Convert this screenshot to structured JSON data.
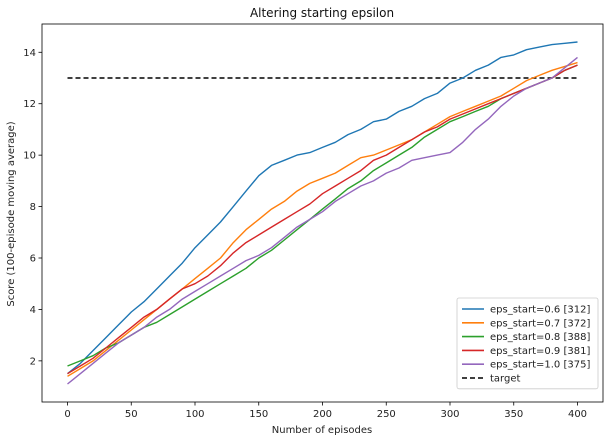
{
  "chart_data": {
    "type": "line",
    "title": "Altering starting epsilon",
    "xlabel": "Number of episodes",
    "ylabel": "Score (100-episode moving average)",
    "xlim": [
      -20,
      420
    ],
    "ylim": [
      0.4,
      15.1
    ],
    "xticks": [
      0,
      50,
      100,
      150,
      200,
      250,
      300,
      350,
      400
    ],
    "yticks": [
      2,
      4,
      6,
      8,
      10,
      12,
      14
    ],
    "grid": false,
    "legend_position": "lower-right",
    "series": [
      {
        "name": "eps_start=0.6 [312]",
        "color": "#1f77b4",
        "points": [
          [
            0,
            1.5
          ],
          [
            10,
            1.9
          ],
          [
            20,
            2.4
          ],
          [
            30,
            2.9
          ],
          [
            40,
            3.4
          ],
          [
            50,
            3.9
          ],
          [
            60,
            4.3
          ],
          [
            70,
            4.8
          ],
          [
            80,
            5.3
          ],
          [
            90,
            5.8
          ],
          [
            100,
            6.4
          ],
          [
            110,
            6.9
          ],
          [
            120,
            7.4
          ],
          [
            130,
            8.0
          ],
          [
            140,
            8.6
          ],
          [
            150,
            9.2
          ],
          [
            160,
            9.6
          ],
          [
            170,
            9.8
          ],
          [
            180,
            10.0
          ],
          [
            190,
            10.1
          ],
          [
            200,
            10.3
          ],
          [
            210,
            10.5
          ],
          [
            220,
            10.8
          ],
          [
            230,
            11.0
          ],
          [
            240,
            11.3
          ],
          [
            250,
            11.4
          ],
          [
            260,
            11.7
          ],
          [
            270,
            11.9
          ],
          [
            280,
            12.2
          ],
          [
            290,
            12.4
          ],
          [
            300,
            12.8
          ],
          [
            310,
            13.0
          ],
          [
            320,
            13.3
          ],
          [
            330,
            13.5
          ],
          [
            340,
            13.8
          ],
          [
            350,
            13.9
          ],
          [
            360,
            14.1
          ],
          [
            370,
            14.2
          ],
          [
            380,
            14.3
          ],
          [
            390,
            14.35
          ],
          [
            400,
            14.4
          ]
        ]
      },
      {
        "name": "eps_start=0.7 [372]",
        "color": "#ff7f0e",
        "points": [
          [
            0,
            1.4
          ],
          [
            10,
            1.7
          ],
          [
            20,
            2.0
          ],
          [
            30,
            2.4
          ],
          [
            40,
            2.8
          ],
          [
            50,
            3.2
          ],
          [
            60,
            3.6
          ],
          [
            70,
            4.0
          ],
          [
            80,
            4.4
          ],
          [
            90,
            4.8
          ],
          [
            100,
            5.2
          ],
          [
            110,
            5.6
          ],
          [
            120,
            6.0
          ],
          [
            130,
            6.6
          ],
          [
            140,
            7.1
          ],
          [
            150,
            7.5
          ],
          [
            160,
            7.9
          ],
          [
            170,
            8.2
          ],
          [
            180,
            8.6
          ],
          [
            190,
            8.9
          ],
          [
            200,
            9.1
          ],
          [
            210,
            9.3
          ],
          [
            220,
            9.6
          ],
          [
            230,
            9.9
          ],
          [
            240,
            10.0
          ],
          [
            250,
            10.2
          ],
          [
            260,
            10.4
          ],
          [
            270,
            10.6
          ],
          [
            280,
            10.9
          ],
          [
            290,
            11.2
          ],
          [
            300,
            11.5
          ],
          [
            310,
            11.7
          ],
          [
            320,
            11.9
          ],
          [
            330,
            12.1
          ],
          [
            340,
            12.3
          ],
          [
            350,
            12.6
          ],
          [
            360,
            12.9
          ],
          [
            370,
            13.1
          ],
          [
            380,
            13.3
          ],
          [
            390,
            13.45
          ],
          [
            400,
            13.6
          ]
        ]
      },
      {
        "name": "eps_start=0.8 [388]",
        "color": "#2ca02c",
        "points": [
          [
            0,
            1.8
          ],
          [
            10,
            2.0
          ],
          [
            20,
            2.2
          ],
          [
            30,
            2.5
          ],
          [
            40,
            2.7
          ],
          [
            50,
            3.0
          ],
          [
            60,
            3.3
          ],
          [
            70,
            3.5
          ],
          [
            80,
            3.8
          ],
          [
            90,
            4.1
          ],
          [
            100,
            4.4
          ],
          [
            110,
            4.7
          ],
          [
            120,
            5.0
          ],
          [
            130,
            5.3
          ],
          [
            140,
            5.6
          ],
          [
            150,
            6.0
          ],
          [
            160,
            6.3
          ],
          [
            170,
            6.7
          ],
          [
            180,
            7.1
          ],
          [
            190,
            7.5
          ],
          [
            200,
            7.9
          ],
          [
            210,
            8.3
          ],
          [
            220,
            8.7
          ],
          [
            230,
            9.0
          ],
          [
            240,
            9.4
          ],
          [
            250,
            9.7
          ],
          [
            260,
            10.0
          ],
          [
            270,
            10.3
          ],
          [
            280,
            10.7
          ],
          [
            290,
            11.0
          ],
          [
            300,
            11.3
          ],
          [
            310,
            11.5
          ],
          [
            320,
            11.7
          ],
          [
            330,
            11.9
          ],
          [
            340,
            12.2
          ],
          [
            350,
            12.4
          ],
          [
            360,
            12.6
          ],
          [
            370,
            12.8
          ],
          [
            380,
            13.0
          ],
          [
            390,
            13.3
          ],
          [
            400,
            13.5
          ]
        ]
      },
      {
        "name": "eps_start=0.9 [381]",
        "color": "#d62728",
        "points": [
          [
            0,
            1.5
          ],
          [
            10,
            1.8
          ],
          [
            20,
            2.1
          ],
          [
            30,
            2.5
          ],
          [
            40,
            2.9
          ],
          [
            50,
            3.3
          ],
          [
            60,
            3.7
          ],
          [
            70,
            4.0
          ],
          [
            80,
            4.4
          ],
          [
            90,
            4.8
          ],
          [
            100,
            5.0
          ],
          [
            110,
            5.3
          ],
          [
            120,
            5.7
          ],
          [
            130,
            6.2
          ],
          [
            140,
            6.6
          ],
          [
            150,
            6.9
          ],
          [
            160,
            7.2
          ],
          [
            170,
            7.5
          ],
          [
            180,
            7.8
          ],
          [
            190,
            8.1
          ],
          [
            200,
            8.5
          ],
          [
            210,
            8.8
          ],
          [
            220,
            9.1
          ],
          [
            230,
            9.4
          ],
          [
            240,
            9.8
          ],
          [
            250,
            10.0
          ],
          [
            260,
            10.3
          ],
          [
            270,
            10.6
          ],
          [
            280,
            10.9
          ],
          [
            290,
            11.1
          ],
          [
            300,
            11.4
          ],
          [
            310,
            11.6
          ],
          [
            320,
            11.8
          ],
          [
            330,
            12.0
          ],
          [
            340,
            12.2
          ],
          [
            350,
            12.4
          ],
          [
            360,
            12.6
          ],
          [
            370,
            12.8
          ],
          [
            380,
            13.0
          ],
          [
            390,
            13.3
          ],
          [
            400,
            13.5
          ]
        ]
      },
      {
        "name": "eps_start=1.0 [375]",
        "color": "#9467bd",
        "points": [
          [
            0,
            1.1
          ],
          [
            10,
            1.5
          ],
          [
            20,
            1.9
          ],
          [
            30,
            2.3
          ],
          [
            40,
            2.7
          ],
          [
            50,
            3.0
          ],
          [
            60,
            3.3
          ],
          [
            70,
            3.7
          ],
          [
            80,
            4.0
          ],
          [
            90,
            4.4
          ],
          [
            100,
            4.7
          ],
          [
            110,
            5.0
          ],
          [
            120,
            5.3
          ],
          [
            130,
            5.6
          ],
          [
            140,
            5.9
          ],
          [
            150,
            6.1
          ],
          [
            160,
            6.4
          ],
          [
            170,
            6.8
          ],
          [
            180,
            7.2
          ],
          [
            190,
            7.5
          ],
          [
            200,
            7.8
          ],
          [
            210,
            8.2
          ],
          [
            220,
            8.5
          ],
          [
            230,
            8.8
          ],
          [
            240,
            9.0
          ],
          [
            250,
            9.3
          ],
          [
            260,
            9.5
          ],
          [
            270,
            9.8
          ],
          [
            280,
            9.9
          ],
          [
            290,
            10.0
          ],
          [
            300,
            10.1
          ],
          [
            310,
            10.5
          ],
          [
            320,
            11.0
          ],
          [
            330,
            11.4
          ],
          [
            340,
            11.9
          ],
          [
            350,
            12.3
          ],
          [
            360,
            12.6
          ],
          [
            370,
            12.8
          ],
          [
            380,
            13.0
          ],
          [
            390,
            13.4
          ],
          [
            400,
            13.8
          ]
        ]
      }
    ],
    "target": {
      "name": "target",
      "color": "#000000",
      "value": 13,
      "x_range": [
        0,
        400
      ]
    }
  }
}
